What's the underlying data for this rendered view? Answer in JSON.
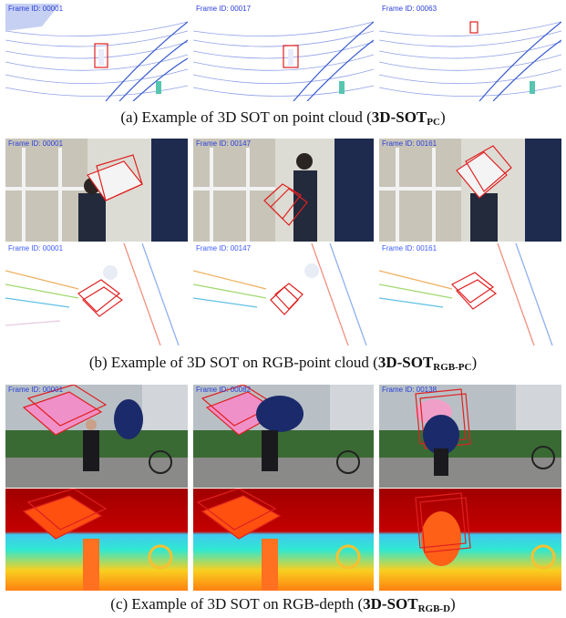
{
  "figure": {
    "section_a": {
      "frames": [
        "Frame ID: 00001",
        "Frame ID: 00017",
        "Frame ID: 00063"
      ],
      "caption": {
        "text": "(a) Example of 3D SOT on point cloud (",
        "bold": "3D-SOT",
        "sub": "PC",
        "close": ")"
      }
    },
    "section_b": {
      "frames_rgb": [
        "Frame ID: 00001",
        "Frame ID: 00147",
        "Frame ID: 00161"
      ],
      "frames_pc": [
        "Frame ID: 00001",
        "Frame ID: 00147",
        "Frame ID: 00161"
      ],
      "caption": {
        "text": "(b) Example of 3D SOT on RGB-point cloud (",
        "bold": "3D-SOT",
        "sub": "RGB-PC",
        "close": ")"
      }
    },
    "section_c": {
      "frames_rgb": [
        "Frame ID: 00001",
        "Frame ID: 00082",
        "Frame ID: 00138"
      ],
      "caption": {
        "text": "(c) Example of 3D SOT on RGB-depth (",
        "bold": "3D-SOT",
        "sub": "RGB-D",
        "close": ")"
      }
    }
  }
}
